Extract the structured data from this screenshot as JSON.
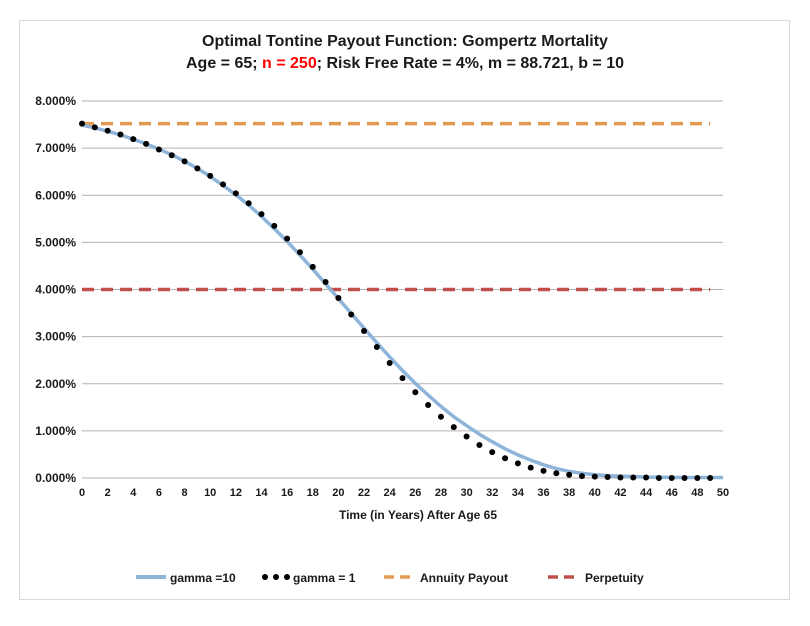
{
  "colors": {
    "gamma10": "#8eb4d9",
    "gamma1": "#000000",
    "annuity": "#e29a53",
    "perpetuity": "#c0504d",
    "grid": "#b3b3b3",
    "title_red": "#ff0000"
  },
  "chart_data": {
    "type": "line",
    "title": "Optimal Tontine Payout Function: Gompertz Mortality",
    "subtitle_parts": {
      "a": "Age = 65; ",
      "n": "n = 250",
      "b": "; Risk Free Rate = 4%, m = 88.721, b = 10"
    },
    "xlabel": "Time (in Years) After Age 65",
    "ylabel": "",
    "xlim": [
      0,
      50
    ],
    "ylim": [
      0,
      8
    ],
    "x_ticks": [
      0,
      2,
      4,
      6,
      8,
      10,
      12,
      14,
      16,
      18,
      20,
      22,
      24,
      26,
      28,
      30,
      32,
      34,
      36,
      38,
      40,
      42,
      44,
      46,
      48,
      50
    ],
    "y_ticks": [
      "0.000%",
      "1.000%",
      "2.000%",
      "3.000%",
      "4.000%",
      "5.000%",
      "6.000%",
      "7.000%",
      "8.000%"
    ],
    "legend_position": "bottom",
    "series": [
      {
        "name": "gamma =10",
        "style": "solid",
        "x": [
          0,
          1,
          2,
          3,
          4,
          5,
          6,
          7,
          8,
          9,
          10,
          11,
          12,
          13,
          14,
          15,
          16,
          17,
          18,
          19,
          20,
          21,
          22,
          23,
          24,
          25,
          26,
          27,
          28,
          29,
          30,
          31,
          32,
          33,
          34,
          35,
          36,
          37,
          38,
          39,
          40,
          41,
          42,
          43,
          44,
          45,
          46,
          47,
          48,
          49,
          50
        ],
        "values": [
          7.49,
          7.43,
          7.36,
          7.28,
          7.19,
          7.09,
          6.98,
          6.86,
          6.72,
          6.57,
          6.4,
          6.21,
          6.01,
          5.79,
          5.55,
          5.29,
          5.02,
          4.73,
          4.43,
          4.12,
          3.81,
          3.49,
          3.18,
          2.87,
          2.57,
          2.28,
          2.01,
          1.76,
          1.52,
          1.3,
          1.11,
          0.93,
          0.77,
          0.62,
          0.49,
          0.38,
          0.28,
          0.2,
          0.14,
          0.1,
          0.07,
          0.05,
          0.04,
          0.03,
          0.02,
          0.02,
          0.01,
          0.01,
          0.01,
          0.01,
          0.01
        ]
      },
      {
        "name": "gamma = 1",
        "style": "dotted",
        "x": [
          0,
          1,
          2,
          3,
          4,
          5,
          6,
          7,
          8,
          9,
          10,
          11,
          12,
          13,
          14,
          15,
          16,
          17,
          18,
          19,
          20,
          21,
          22,
          23,
          24,
          25,
          26,
          27,
          28,
          29,
          30,
          31,
          32,
          33,
          34,
          35,
          36,
          37,
          38,
          39,
          40,
          41,
          42,
          43,
          44,
          45,
          46,
          47,
          48,
          49
        ],
        "values": [
          7.52,
          7.44,
          7.37,
          7.29,
          7.19,
          7.09,
          6.97,
          6.85,
          6.72,
          6.57,
          6.41,
          6.23,
          6.04,
          5.83,
          5.6,
          5.35,
          5.08,
          4.79,
          4.48,
          4.16,
          3.82,
          3.47,
          3.12,
          2.78,
          2.44,
          2.12,
          1.82,
          1.55,
          1.3,
          1.08,
          0.88,
          0.7,
          0.55,
          0.42,
          0.31,
          0.22,
          0.15,
          0.1,
          0.07,
          0.04,
          0.03,
          0.02,
          0.01,
          0.01,
          0.01,
          0.0,
          0.0,
          0.0,
          0.0,
          0.0
        ]
      },
      {
        "name": "Annuity Payout",
        "style": "dashed",
        "x": [
          0,
          49
        ],
        "values": [
          7.52,
          7.52
        ]
      },
      {
        "name": "Perpetuity",
        "style": "dashed",
        "x": [
          0,
          49
        ],
        "values": [
          4.0,
          4.0
        ]
      }
    ]
  }
}
